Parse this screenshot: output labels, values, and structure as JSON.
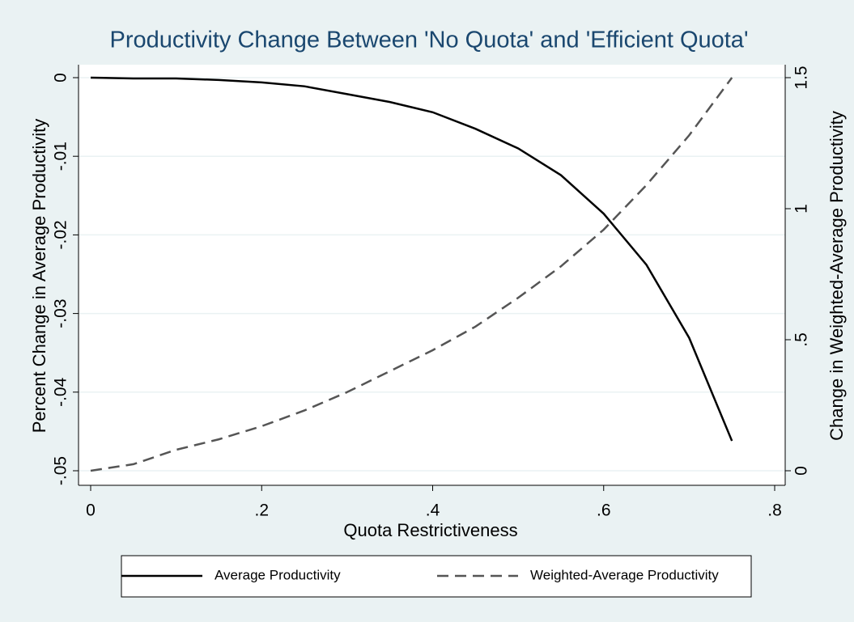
{
  "chart_data": {
    "type": "line",
    "title": "Productivity Change Between 'No Quota' and 'Efficient Quota'",
    "x_label": "Quota Restrictiveness",
    "y_label": "Percent Change in Average Productivity",
    "y2_label": "Change in Weighted-Average Productivity",
    "x": [
      0,
      0.05,
      0.1,
      0.15,
      0.2,
      0.25,
      0.3,
      0.35,
      0.4,
      0.45,
      0.5,
      0.55,
      0.6,
      0.65,
      0.7,
      0.75
    ],
    "series": [
      {
        "name": "Average Productivity",
        "color": "#000000",
        "dash": "solid",
        "values": [
          0,
          -0.0001,
          -0.0001,
          -0.0003,
          -0.0006,
          -0.0011,
          -0.0021,
          -0.0031,
          -0.0044,
          -0.0065,
          -0.009,
          -0.0124,
          -0.0173,
          -0.0238,
          -0.0331,
          -0.0462
        ]
      },
      {
        "name": "Weighted-Average Productivity",
        "color": "#555555",
        "dash": "dashed",
        "axis": "y2",
        "values": [
          0,
          0.025,
          0.08,
          0.12,
          0.17,
          0.23,
          0.3,
          0.38,
          0.46,
          0.55,
          0.66,
          0.78,
          0.92,
          1.09,
          1.28,
          1.5
        ]
      }
    ],
    "xlim": [
      0,
      0.8
    ],
    "xticks": [
      0,
      {
        "value": 0.2,
        "label": ".2"
      },
      {
        "value": 0.4,
        "label": ".4"
      },
      {
        "value": 0.6,
        "label": ".6"
      },
      {
        "value": 0.8,
        "label": ".8"
      }
    ],
    "ylim": [
      -0.05,
      0
    ],
    "yticks": [
      {
        "value": -0.05,
        "label": "-.05"
      },
      {
        "value": -0.04,
        "label": "-.04"
      },
      {
        "value": -0.03,
        "label": "-.03"
      },
      {
        "value": -0.02,
        "label": "-.02"
      },
      {
        "value": -0.01,
        "label": "-.01"
      },
      0
    ],
    "y2lim": [
      0,
      1.5
    ],
    "y2ticks": [
      0,
      {
        "value": 0.5,
        "label": ".5"
      },
      1,
      {
        "value": 1.5,
        "label": "1.5"
      }
    ],
    "grid": true,
    "legend": "bottom"
  }
}
